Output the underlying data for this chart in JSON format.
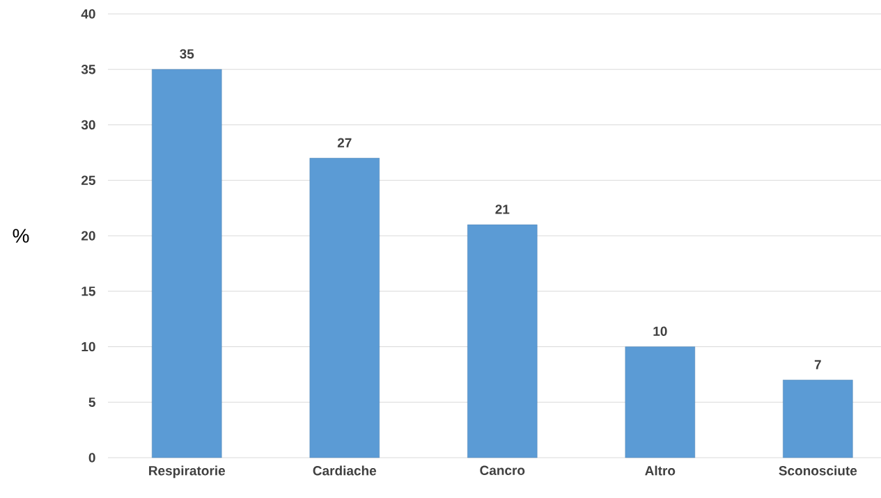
{
  "chart_data": {
    "type": "bar",
    "ylabel": "%",
    "categories": [
      "Respiratorie",
      "Cardiache",
      "Cancro",
      "Altro",
      "Sconosciute"
    ],
    "values": [
      35,
      27,
      21,
      10,
      7
    ],
    "color": "#5b9bd5",
    "ylim": [
      0,
      40
    ],
    "yticks": [
      0,
      5,
      10,
      15,
      20,
      25,
      30,
      35,
      40
    ],
    "grid": "y",
    "data_labels": true
  }
}
